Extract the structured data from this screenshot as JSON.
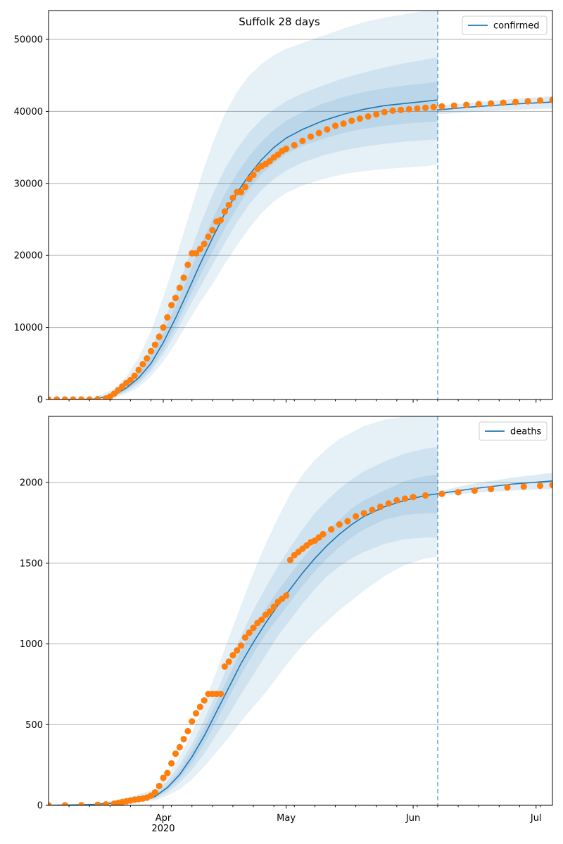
{
  "title": "Suffolk 28 days",
  "x_axis": {
    "ticks": [
      {
        "date": "2020-04-01",
        "label": "Apr",
        "sublabel": "2020"
      },
      {
        "date": "2020-05-01",
        "label": "May",
        "sublabel": ""
      },
      {
        "date": "2020-06-01",
        "label": "Jun",
        "sublabel": ""
      },
      {
        "date": "2020-07-01",
        "label": "Jul",
        "sublabel": ""
      }
    ],
    "xlim": [
      "2020-03-04",
      "2020-07-05"
    ],
    "minor_tick_interval_days": 5
  },
  "forecast_start": "2020-06-07",
  "colors": {
    "model": "#1f77b4",
    "observed": "#ff7f0e",
    "band": "#1f77b4",
    "grid": "#b0b0b0"
  },
  "chart_data": [
    {
      "type": "line",
      "panel": "confirmed",
      "series_name": "confirmed",
      "legend": "top-right",
      "grid": "horizontal",
      "ylim": [
        0,
        54000
      ],
      "yticks": [
        0,
        10000,
        20000,
        30000,
        40000,
        50000
      ],
      "model": {
        "dates": [
          "2020-03-04",
          "2020-03-10",
          "2020-03-15",
          "2020-03-20",
          "2020-03-23",
          "2020-03-26",
          "2020-03-29",
          "2020-04-01",
          "2020-04-04",
          "2020-04-07",
          "2020-04-10",
          "2020-04-13",
          "2020-04-16",
          "2020-04-19",
          "2020-04-22",
          "2020-04-25",
          "2020-04-28",
          "2020-05-01",
          "2020-05-05",
          "2020-05-10",
          "2020-05-15",
          "2020-05-20",
          "2020-05-25",
          "2020-05-30",
          "2020-06-04",
          "2020-06-07"
        ],
        "values": [
          0,
          0,
          50,
          600,
          1600,
          3000,
          5000,
          7900,
          11300,
          15000,
          18800,
          22400,
          25800,
          28700,
          31200,
          33300,
          35000,
          36300,
          37500,
          38700,
          39600,
          40300,
          40800,
          41100,
          41400,
          41600
        ]
      },
      "bands": [
        {
          "lower": [
            0,
            0,
            0,
            200,
            800,
            1700,
            3200,
            5300,
            7800,
            10700,
            13500,
            16000,
            18800,
            21400,
            23800,
            25900,
            27500,
            28700,
            29700,
            30600,
            31300,
            31700,
            32000,
            32200,
            32400,
            32600
          ],
          "upper": [
            0,
            0,
            200,
            1500,
            3200,
            5800,
            9500,
            14200,
            19500,
            25000,
            30500,
            35500,
            39600,
            42700,
            45000,
            46600,
            47800,
            48700,
            49500,
            50500,
            51500,
            52400,
            53000,
            53500,
            54000,
            54200
          ]
        },
        {
          "lower": [
            0,
            0,
            20,
            350,
            1100,
            2200,
            3900,
            6300,
            9200,
            12500,
            15600,
            18700,
            21700,
            24600,
            27100,
            29100,
            30600,
            31800,
            32900,
            33900,
            34600,
            35100,
            35500,
            35800,
            36000,
            36100
          ],
          "upper": [
            0,
            0,
            100,
            950,
            2300,
            4200,
            7000,
            10600,
            14800,
            19400,
            24200,
            28400,
            32000,
            34800,
            37100,
            38900,
            40300,
            41400,
            42500,
            43600,
            44600,
            45400,
            46100,
            46700,
            47200,
            47500
          ]
        },
        {
          "lower": [
            0,
            0,
            30,
            450,
            1300,
            2500,
            4300,
            6900,
            10100,
            13700,
            17200,
            20500,
            23700,
            26600,
            29200,
            31300,
            32800,
            34100,
            35200,
            36200,
            37000,
            37600,
            38000,
            38300,
            38500,
            38600
          ],
          "upper": [
            0,
            0,
            80,
            780,
            2000,
            3700,
            6100,
            9200,
            12900,
            17000,
            21200,
            25000,
            28500,
            31400,
            33800,
            35800,
            37400,
            38700,
            39900,
            41100,
            42000,
            42700,
            43200,
            43600,
            43900,
            44100
          ]
        }
      ],
      "forecast_model": {
        "dates": [
          "2020-06-07",
          "2020-06-15",
          "2020-06-25",
          "2020-07-05"
        ],
        "values": [
          40200,
          40600,
          41000,
          41300
        ]
      },
      "forecast_band": {
        "lower": [
          39600,
          39900,
          40200,
          40400
        ],
        "upper": [
          40800,
          41200,
          41700,
          42100
        ]
      },
      "observed": {
        "dates": [
          "2020-03-04",
          "2020-03-06",
          "2020-03-08",
          "2020-03-10",
          "2020-03-12",
          "2020-03-14",
          "2020-03-16",
          "2020-03-18",
          "2020-03-19",
          "2020-03-20",
          "2020-03-21",
          "2020-03-22",
          "2020-03-23",
          "2020-03-24",
          "2020-03-25",
          "2020-03-26",
          "2020-03-27",
          "2020-03-28",
          "2020-03-29",
          "2020-03-30",
          "2020-03-31",
          "2020-04-01",
          "2020-04-02",
          "2020-04-03",
          "2020-04-04",
          "2020-04-05",
          "2020-04-06",
          "2020-04-07",
          "2020-04-08",
          "2020-04-09",
          "2020-04-10",
          "2020-04-11",
          "2020-04-12",
          "2020-04-13",
          "2020-04-14",
          "2020-04-15",
          "2020-04-16",
          "2020-04-17",
          "2020-04-18",
          "2020-04-19",
          "2020-04-20",
          "2020-04-21",
          "2020-04-22",
          "2020-04-23",
          "2020-04-24",
          "2020-04-25",
          "2020-04-26",
          "2020-04-27",
          "2020-04-28",
          "2020-04-29",
          "2020-04-30",
          "2020-05-01",
          "2020-05-03",
          "2020-05-05",
          "2020-05-07",
          "2020-05-09",
          "2020-05-11",
          "2020-05-13",
          "2020-05-15",
          "2020-05-17",
          "2020-05-19",
          "2020-05-21",
          "2020-05-23",
          "2020-05-25",
          "2020-05-27",
          "2020-05-29",
          "2020-05-31",
          "2020-06-02",
          "2020-06-04",
          "2020-06-06",
          "2020-06-08",
          "2020-06-11",
          "2020-06-14",
          "2020-06-17",
          "2020-06-20",
          "2020-06-23",
          "2020-06-26",
          "2020-06-29",
          "2020-07-02",
          "2020-07-05"
        ],
        "values": [
          0,
          0,
          0,
          0,
          0,
          0,
          50,
          150,
          400,
          800,
          1300,
          1800,
          2300,
          2700,
          3300,
          4100,
          4900,
          5700,
          6700,
          7600,
          8700,
          10000,
          11400,
          13100,
          14100,
          15500,
          16900,
          18700,
          20300,
          20300,
          20900,
          21600,
          22600,
          23500,
          24700,
          24900,
          26100,
          27000,
          28000,
          28800,
          28800,
          29500,
          30600,
          31200,
          32000,
          32400,
          32700,
          33100,
          33600,
          34000,
          34500,
          34800,
          35300,
          35900,
          36500,
          37000,
          37500,
          38000,
          38300,
          38700,
          39000,
          39300,
          39600,
          39900,
          40100,
          40200,
          40300,
          40400,
          40500,
          40600,
          40700,
          40800,
          40900,
          41000,
          41100,
          41200,
          41300,
          41400,
          41500,
          41600
        ]
      }
    },
    {
      "type": "line",
      "panel": "deaths",
      "series_name": "deaths",
      "legend": "top-right",
      "grid": "horizontal",
      "ylim": [
        0,
        2410
      ],
      "yticks": [
        0,
        500,
        1000,
        1500,
        2000
      ],
      "model": {
        "dates": [
          "2020-03-04",
          "2020-03-15",
          "2020-03-20",
          "2020-03-25",
          "2020-03-30",
          "2020-04-02",
          "2020-04-05",
          "2020-04-08",
          "2020-04-11",
          "2020-04-14",
          "2020-04-17",
          "2020-04-20",
          "2020-04-23",
          "2020-04-26",
          "2020-04-29",
          "2020-05-02",
          "2020-05-05",
          "2020-05-08",
          "2020-05-11",
          "2020-05-14",
          "2020-05-17",
          "2020-05-20",
          "2020-05-25",
          "2020-05-30",
          "2020-06-04",
          "2020-06-07"
        ],
        "values": [
          0,
          5,
          15,
          30,
          55,
          110,
          190,
          300,
          430,
          580,
          730,
          880,
          1010,
          1130,
          1240,
          1340,
          1440,
          1530,
          1610,
          1680,
          1740,
          1790,
          1850,
          1890,
          1920,
          1930
        ]
      },
      "bands": [
        {
          "lower": [
            0,
            2,
            8,
            20,
            30,
            60,
            100,
            160,
            240,
            330,
            420,
            520,
            610,
            700,
            800,
            900,
            990,
            1070,
            1140,
            1210,
            1270,
            1330,
            1420,
            1490,
            1530,
            1540
          ],
          "upper": [
            0,
            10,
            30,
            60,
            100,
            180,
            300,
            450,
            630,
            830,
            1040,
            1240,
            1440,
            1620,
            1780,
            1930,
            2050,
            2140,
            2210,
            2270,
            2310,
            2350,
            2390,
            2410,
            2420,
            2430
          ]
        },
        {
          "lower": [
            0,
            3,
            11,
            24,
            40,
            80,
            140,
            220,
            320,
            440,
            560,
            690,
            810,
            930,
            1050,
            1150,
            1250,
            1340,
            1420,
            1480,
            1530,
            1570,
            1620,
            1650,
            1660,
            1660
          ],
          "upper": [
            0,
            8,
            22,
            45,
            80,
            150,
            250,
            380,
            530,
            700,
            880,
            1050,
            1210,
            1350,
            1480,
            1600,
            1710,
            1810,
            1890,
            1960,
            2020,
            2070,
            2130,
            2180,
            2210,
            2220
          ]
        },
        {
          "lower": [
            0,
            4,
            13,
            27,
            46,
            95,
            165,
            260,
            380,
            520,
            670,
            810,
            940,
            1060,
            1160,
            1260,
            1360,
            1450,
            1530,
            1600,
            1660,
            1710,
            1770,
            1800,
            1810,
            1810
          ],
          "upper": [
            0,
            6,
            18,
            36,
            66,
            125,
            215,
            340,
            480,
            640,
            800,
            960,
            1100,
            1220,
            1330,
            1430,
            1530,
            1620,
            1700,
            1770,
            1840,
            1890,
            1950,
            2010,
            2040,
            2050
          ]
        }
      ],
      "forecast_model": {
        "dates": [
          "2020-06-07",
          "2020-06-15",
          "2020-06-25",
          "2020-07-05"
        ],
        "values": [
          1930,
          1960,
          1990,
          2010
        ]
      },
      "forecast_band": {
        "lower": [
          1920,
          1935,
          1950,
          1960
        ],
        "upper": [
          1945,
          1990,
          2030,
          2060
        ]
      },
      "observed": {
        "dates": [
          "2020-03-04",
          "2020-03-08",
          "2020-03-12",
          "2020-03-16",
          "2020-03-18",
          "2020-03-20",
          "2020-03-21",
          "2020-03-22",
          "2020-03-23",
          "2020-03-24",
          "2020-03-25",
          "2020-03-26",
          "2020-03-27",
          "2020-03-28",
          "2020-03-29",
          "2020-03-30",
          "2020-03-31",
          "2020-04-01",
          "2020-04-02",
          "2020-04-03",
          "2020-04-04",
          "2020-04-05",
          "2020-04-06",
          "2020-04-07",
          "2020-04-08",
          "2020-04-09",
          "2020-04-10",
          "2020-04-11",
          "2020-04-12",
          "2020-04-13",
          "2020-04-14",
          "2020-04-15",
          "2020-04-16",
          "2020-04-17",
          "2020-04-18",
          "2020-04-19",
          "2020-04-20",
          "2020-04-21",
          "2020-04-22",
          "2020-04-23",
          "2020-04-24",
          "2020-04-25",
          "2020-04-26",
          "2020-04-27",
          "2020-04-28",
          "2020-04-29",
          "2020-04-30",
          "2020-05-01",
          "2020-05-02",
          "2020-05-03",
          "2020-05-04",
          "2020-05-05",
          "2020-05-06",
          "2020-05-07",
          "2020-05-08",
          "2020-05-09",
          "2020-05-10",
          "2020-05-12",
          "2020-05-14",
          "2020-05-16",
          "2020-05-18",
          "2020-05-20",
          "2020-05-22",
          "2020-05-24",
          "2020-05-26",
          "2020-05-28",
          "2020-05-30",
          "2020-06-01",
          "2020-06-04",
          "2020-06-08",
          "2020-06-12",
          "2020-06-16",
          "2020-06-20",
          "2020-06-24",
          "2020-06-28",
          "2020-07-02",
          "2020-07-05"
        ],
        "values": [
          0,
          0,
          0,
          3,
          6,
          10,
          15,
          20,
          25,
          30,
          35,
          38,
          42,
          48,
          60,
          80,
          120,
          170,
          200,
          260,
          320,
          360,
          410,
          460,
          520,
          570,
          610,
          650,
          690,
          690,
          690,
          690,
          860,
          890,
          930,
          960,
          990,
          1040,
          1070,
          1100,
          1130,
          1150,
          1180,
          1200,
          1230,
          1260,
          1280,
          1300,
          1520,
          1550,
          1570,
          1590,
          1610,
          1630,
          1640,
          1660,
          1680,
          1710,
          1740,
          1760,
          1790,
          1810,
          1830,
          1850,
          1870,
          1890,
          1900,
          1910,
          1920,
          1930,
          1940,
          1950,
          1960,
          1970,
          1975,
          1980,
          1985
        ]
      }
    }
  ]
}
